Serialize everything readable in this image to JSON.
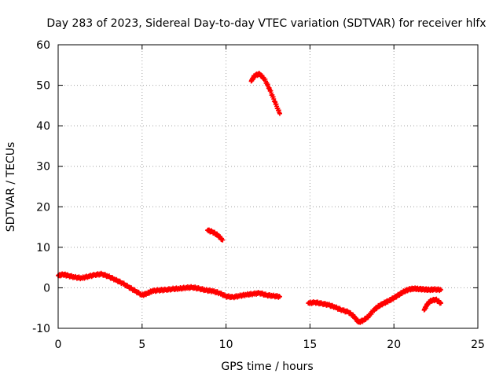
{
  "chart_data": {
    "type": "scatter",
    "title": "Day 283 of 2023, Sidereal Day-to-day VTEC variation (SDTVAR) for receiver hlfx",
    "xlabel": "GPS time / hours",
    "ylabel": "SDTVAR / TECUs",
    "xlim": [
      0,
      25
    ],
    "ylim": [
      -10,
      60
    ],
    "xticks": [
      0,
      5,
      10,
      15,
      20,
      25
    ],
    "yticks": [
      -10,
      0,
      10,
      20,
      30,
      40,
      50,
      60
    ],
    "grid": true,
    "marker": "plus",
    "series": [
      {
        "name": "SDTVAR",
        "color": "#ff0000",
        "segments": [
          {
            "x": [
              0.0,
              0.3,
              0.6,
              1.0,
              1.4,
              1.8,
              2.2,
              2.6,
              3.0,
              3.4,
              3.8,
              4.2,
              4.6,
              5.0,
              5.3,
              5.6,
              6.0,
              6.4,
              6.8,
              7.2,
              7.6,
              8.0,
              8.4,
              8.8,
              9.2,
              9.6,
              10.0,
              10.4,
              10.8,
              11.2,
              11.6,
              12.0,
              12.4,
              12.8,
              13.2
            ],
            "y": [
              3.0,
              3.3,
              3.0,
              2.6,
              2.4,
              2.8,
              3.2,
              3.4,
              2.8,
              2.0,
              1.2,
              0.2,
              -0.8,
              -1.8,
              -1.4,
              -0.8,
              -0.6,
              -0.5,
              -0.3,
              -0.2,
              0.0,
              0.1,
              -0.2,
              -0.6,
              -0.8,
              -1.3,
              -2.1,
              -2.3,
              -2.0,
              -1.7,
              -1.5,
              -1.3,
              -1.8,
              -2.0,
              -2.2
            ]
          },
          {
            "x": [
              8.9,
              9.2,
              9.5,
              9.8
            ],
            "y": [
              14.2,
              13.8,
              13.0,
              11.8
            ]
          },
          {
            "x": [
              11.5,
              11.7,
              12.0,
              12.3,
              12.6,
              12.9,
              13.2
            ],
            "y": [
              51.0,
              52.4,
              52.8,
              51.5,
              49.0,
              46.0,
              43.0
            ]
          },
          {
            "x": [
              14.9,
              15.3,
              15.7,
              16.1,
              16.5,
              16.9,
              17.3,
              17.6,
              17.9,
              18.2,
              18.5,
              18.8,
              19.1,
              19.4,
              19.7,
              20.0,
              20.3,
              20.6,
              20.9,
              21.2,
              21.5,
              21.8,
              22.1,
              22.4,
              22.8
            ],
            "y": [
              -3.8,
              -3.6,
              -3.9,
              -4.2,
              -4.8,
              -5.5,
              -6.0,
              -7.0,
              -8.5,
              -8.0,
              -7.0,
              -5.5,
              -4.5,
              -3.8,
              -3.2,
              -2.5,
              -1.7,
              -0.9,
              -0.4,
              -0.2,
              -0.3,
              -0.4,
              -0.5,
              -0.4,
              -0.5
            ]
          },
          {
            "x": [
              21.8,
              22.0,
              22.2,
              22.5,
              22.8
            ],
            "y": [
              -5.5,
              -4.0,
              -3.2,
              -2.9,
              -3.8
            ]
          }
        ]
      }
    ]
  }
}
